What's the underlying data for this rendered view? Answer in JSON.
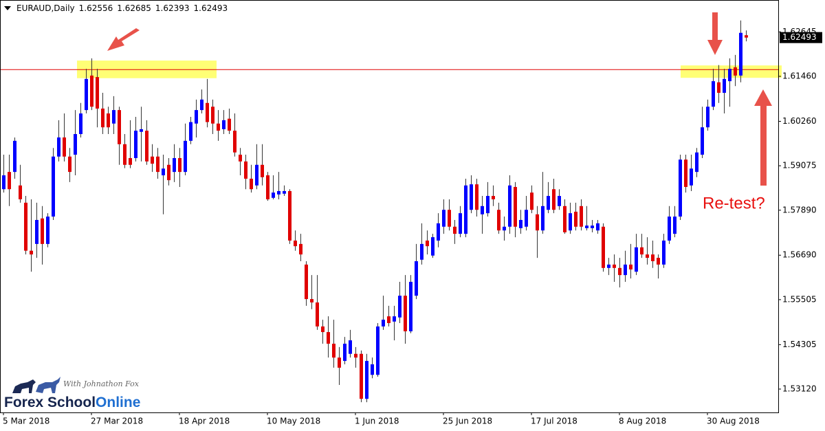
{
  "chart_data": {
    "type": "candlestick",
    "symbol": "EURAUD,Daily",
    "categories": [
      "5 Mar 2018",
      null,
      null,
      null,
      null,
      null,
      null,
      null,
      null,
      null,
      null,
      null,
      null,
      null,
      null,
      null,
      "27 Mar 2018",
      null,
      null,
      null,
      null,
      null,
      null,
      null,
      null,
      null,
      null,
      null,
      null,
      null,
      null,
      null,
      "18 Apr 2018",
      null,
      null,
      null,
      null,
      null,
      null,
      null,
      null,
      null,
      null,
      null,
      null,
      null,
      null,
      null,
      "10 May 2018",
      null,
      null,
      null,
      null,
      null,
      null,
      null,
      null,
      null,
      null,
      null,
      null,
      null,
      null,
      null,
      "1 Jun 2018",
      null,
      null,
      null,
      null,
      null,
      null,
      null,
      null,
      null,
      null,
      null,
      null,
      null,
      null,
      null,
      "25 Jun 2018",
      null,
      null,
      null,
      null,
      null,
      null,
      null,
      null,
      null,
      null,
      null,
      null,
      null,
      null,
      null,
      "17 Jul 2018",
      null,
      null,
      null,
      null,
      null,
      null,
      null,
      null,
      null,
      null,
      null,
      null,
      null,
      null,
      null,
      "8 Aug 2018",
      null,
      null,
      null,
      null,
      null,
      null,
      null,
      null,
      null,
      null,
      null,
      null,
      null,
      null,
      null,
      "30 Aug 2018",
      null,
      null,
      null,
      null,
      null,
      null,
      null
    ],
    "open": [
      1.5845,
      1.5891,
      1.5891,
      1.5855,
      1.5809,
      1.5681,
      1.5699,
      1.5767,
      1.5699,
      1.5772,
      1.5932,
      1.5983,
      1.5932,
      1.5937,
      1.5992,
      1.6056,
      1.6148,
      1.6144,
      1.606,
      1.6047,
      1.602,
      1.6056,
      1.5965,
      1.5928,
      1.5928,
      1.5998,
      1.6001,
      1.5932,
      1.5932,
      1.5882,
      1.591,
      1.5891,
      1.5928,
      1.5891,
      1.5974,
      1.602,
      1.6056,
      1.6075,
      1.6065,
      1.602,
      1.6005,
      1.6033,
      1.6001,
      1.5937,
      1.5919,
      1.5873,
      1.5855,
      1.591,
      1.5882,
      1.5822,
      1.5831,
      1.5833,
      1.584,
      1.5708,
      1.5699,
      1.5644,
      1.5552,
      1.5543,
      1.5479,
      1.5464,
      1.5433,
      1.5396,
      1.5387,
      1.5406,
      1.5406,
      1.5406,
      1.5286,
      1.535,
      1.535,
      1.5479,
      1.5506,
      1.5492,
      1.5503,
      1.5561,
      1.5466,
      1.5561,
      1.5657,
      1.5708,
      1.5668,
      1.5708,
      1.5745,
      1.579,
      1.5745,
      1.5726,
      1.5726,
      1.579,
      1.5858,
      1.5778,
      1.5781,
      1.5827,
      1.579,
      1.5735,
      1.5745,
      1.5851,
      1.5741,
      1.5745,
      1.5836,
      1.5778,
      1.5735,
      1.579,
      1.5845,
      1.58,
      1.58,
      1.5735,
      1.5785,
      1.58,
      1.5741,
      1.5741,
      1.5735,
      1.5745,
      1.5635,
      1.5644,
      1.5635,
      1.5616,
      1.5644,
      1.5625,
      1.569,
      1.5671,
      1.5671,
      1.5662,
      1.5644,
      1.5708,
      1.5726,
      1.5772,
      1.5924,
      1.5855,
      1.5891,
      1.5937,
      1.601,
      1.6065,
      1.613,
      1.6102,
      1.6133,
      1.617,
      1.6148,
      1.62556
    ],
    "high": [
      1.5937,
      1.5937,
      1.5983,
      1.591,
      1.5827,
      1.5818,
      1.5809,
      1.58,
      1.5781,
      1.5955,
      1.6029,
      1.6047,
      1.5955,
      1.6056,
      1.6075,
      1.6166,
      1.6194,
      1.6166,
      1.6102,
      1.6065,
      1.6093,
      1.6065,
      1.5992,
      1.6029,
      1.6038,
      1.6065,
      1.6029,
      1.5965,
      1.5955,
      1.5937,
      1.5928,
      1.5965,
      1.5955,
      1.602,
      1.6038,
      1.6084,
      1.6111,
      1.6139,
      1.6084,
      1.6056,
      1.6056,
      1.606,
      1.6047,
      1.5955,
      1.5937,
      1.591,
      1.5965,
      1.5965,
      1.5891,
      1.5882,
      1.5891,
      1.5855,
      1.5845,
      1.5735,
      1.5726,
      1.5653,
      1.5616,
      1.5616,
      1.5497,
      1.5506,
      1.5497,
      1.5424,
      1.5451,
      1.547,
      1.5424,
      1.5415,
      1.5406,
      1.5396,
      1.5488,
      1.5561,
      1.5534,
      1.5534,
      1.5598,
      1.5616,
      1.5616,
      1.5699,
      1.5754,
      1.5735,
      1.5726,
      1.5781,
      1.5818,
      1.5818,
      1.5763,
      1.58,
      1.5873,
      1.5882,
      1.5873,
      1.5827,
      1.5864,
      1.5855,
      1.5809,
      1.5772,
      1.5882,
      1.5864,
      1.579,
      1.5827,
      1.5855,
      1.58,
      1.5891,
      1.5864,
      1.5873,
      1.5845,
      1.5818,
      1.5809,
      1.5809,
      1.5818,
      1.58,
      1.5763,
      1.5763,
      1.5754,
      1.5662,
      1.5671,
      1.5662,
      1.5681,
      1.5699,
      1.5726,
      1.5726,
      1.5717,
      1.5708,
      1.5671,
      1.5726,
      1.58,
      1.58,
      1.5937,
      1.5937,
      1.5937,
      1.5955,
      1.6065,
      1.6084,
      1.6166,
      1.6176,
      1.6166,
      1.6194,
      1.6203,
      1.6295,
      1.62685
    ],
    "low": [
      1.5836,
      1.58,
      1.5873,
      1.5809,
      1.5671,
      1.5625,
      1.5662,
      1.5644,
      1.569,
      1.5763,
      1.5919,
      1.5919,
      1.5864,
      1.5882,
      1.5983,
      1.6047,
      1.6056,
      1.601,
      1.5992,
      1.5992,
      1.5992,
      1.591,
      1.5901,
      1.5901,
      1.5919,
      1.5919,
      1.591,
      1.5891,
      1.5873,
      1.5778,
      1.5855,
      1.5864,
      1.5851,
      1.5882,
      1.5965,
      1.5983,
      1.6047,
      1.601,
      1.5992,
      1.5974,
      1.5992,
      1.5992,
      1.5932,
      1.5882,
      1.5845,
      1.5836,
      1.5845,
      1.5855,
      1.5814,
      1.5818,
      1.5818,
      1.5827,
      1.5699,
      1.5681,
      1.5653,
      1.5534,
      1.5525,
      1.547,
      1.5433,
      1.5396,
      1.5369,
      1.5323,
      1.5378,
      1.5396,
      1.5369,
      1.5277,
      1.5277,
      1.5341,
      1.5345,
      1.547,
      1.5479,
      1.5442,
      1.5488,
      1.5433,
      1.5461,
      1.5552,
      1.5644,
      1.5671,
      1.5662,
      1.569,
      1.5726,
      1.5735,
      1.5699,
      1.5717,
      1.5717,
      1.5781,
      1.5772,
      1.5726,
      1.5772,
      1.58,
      1.5726,
      1.5708,
      1.5726,
      1.5717,
      1.5726,
      1.5735,
      1.5781,
      1.5662,
      1.5726,
      1.5781,
      1.5781,
      1.579,
      1.5726,
      1.5726,
      1.5735,
      1.5735,
      1.5735,
      1.573,
      1.5726,
      1.5625,
      1.5616,
      1.5598,
      1.5583,
      1.5598,
      1.5607,
      1.5616,
      1.5662,
      1.5644,
      1.5635,
      1.5607,
      1.5635,
      1.5699,
      1.5717,
      1.5763,
      1.5836,
      1.584,
      1.5877,
      1.5928,
      1.6001,
      1.6056,
      1.6075,
      1.6047,
      1.6065,
      1.612,
      1.613,
      1.62393
    ],
    "close": [
      1.5882,
      1.5845,
      1.5974,
      1.5818,
      1.5681,
      1.5671,
      1.5763,
      1.5699,
      1.5772,
      1.5932,
      1.5983,
      1.5932,
      1.5891,
      1.5992,
      1.6047,
      1.6139,
      1.6065,
      1.606,
      1.601,
      1.601,
      1.6056,
      1.5965,
      1.591,
      1.591,
      1.6001,
      1.6005,
      1.5919,
      1.5913,
      1.5891,
      1.59,
      1.5869,
      1.5928,
      1.5891,
      1.5974,
      1.6024,
      1.6056,
      1.6084,
      1.6024,
      1.602,
      1.6001,
      1.6029,
      1.6001,
      1.5943,
      1.5919,
      1.5873,
      1.5845,
      1.591,
      1.5877,
      1.5818,
      1.5836,
      1.584,
      1.584,
      1.5708,
      1.5693,
      1.5671,
      1.5552,
      1.5543,
      1.5479,
      1.5464,
      1.5433,
      1.5396,
      1.5369,
      1.5433,
      1.5442,
      1.5396,
      1.5286,
      1.5387,
      1.5378,
      1.5479,
      1.5497,
      1.5488,
      1.5506,
      1.5561,
      1.5466,
      1.5598,
      1.5653,
      1.5699,
      1.5693,
      1.5717,
      1.5754,
      1.579,
      1.5745,
      1.5726,
      1.5781,
      1.5855,
      1.5858,
      1.579,
      1.58,
      1.5827,
      1.5818,
      1.5735,
      1.5745,
      1.5855,
      1.5745,
      1.5763,
      1.579,
      1.579,
      1.5735,
      1.58,
      1.5827,
      1.579,
      1.5827,
      1.573,
      1.5781,
      1.5745,
      1.5745,
      1.5748,
      1.5748,
      1.5754,
      1.5635,
      1.5644,
      1.5635,
      1.5616,
      1.5644,
      1.5631,
      1.569,
      1.5671,
      1.5662,
      1.5653,
      1.5644,
      1.5708,
      1.5772,
      1.5772,
      1.5924,
      1.5851,
      1.59,
      1.5943,
      1.601,
      1.6065,
      1.6133,
      1.6102,
      1.6139,
      1.6166,
      1.6148,
      1.6262,
      1.62493
    ],
    "up_color": "#0000ff",
    "down_color": "#e00000",
    "ylim": [
      1.52497,
      1.63495
    ],
    "yticks": [
      1.62645,
      {
        "value": 1.6146,
        "label": "1.61460"
      },
      {
        "value": 1.6026,
        "label": "1.60260"
      },
      1.59075,
      {
        "value": 1.5789,
        "label": "1.57890"
      },
      {
        "value": 1.5669,
        "label": "1.56690"
      },
      1.55505,
      1.54305,
      {
        "value": 1.5312,
        "label": "1.53120"
      }
    ],
    "resistance_line": {
      "value": 1.6164,
      "color": "#e00000"
    },
    "zones": [
      {
        "low": 1.6141,
        "high": 1.6188
      },
      {
        "low": 1.6142,
        "high": 1.6175
      }
    ],
    "annotation": "Re-test?"
  },
  "logo": {
    "brand": [
      "Forex School",
      "Online"
    ],
    "tagline": "With Johnathon Fox"
  }
}
